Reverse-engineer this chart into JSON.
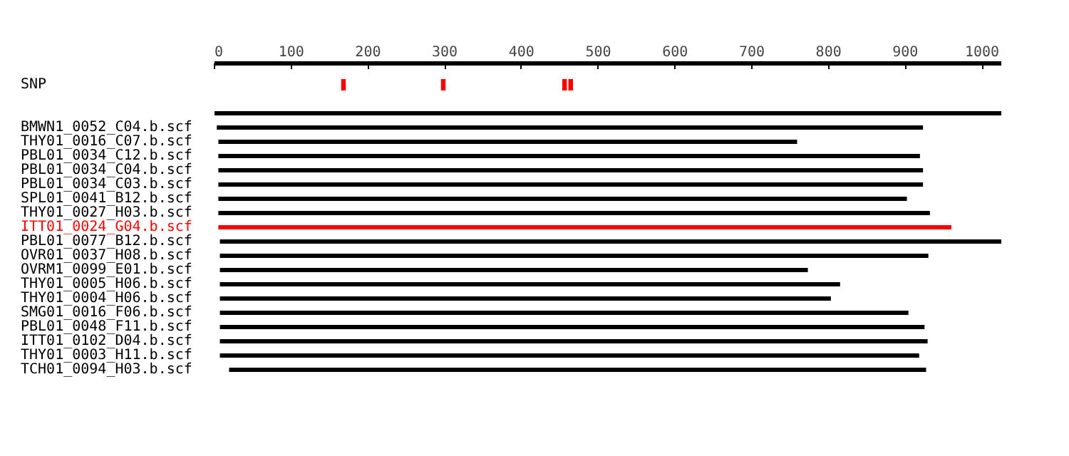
{
  "chart_data": {
    "type": "bar",
    "orientation": "horizontal",
    "grid": false,
    "categories": [
      "SNP",
      null,
      null,
      "BMWN1_0052_C04.b.scf",
      "THY01_0016_C07.b.scf",
      "PBL01_0034_C12.b.scf",
      "PBL01_0034_C04.b.scf",
      "PBL01_0034_C03.b.scf",
      "SPL01_0041_B12.b.scf",
      "THY01_0027_H03.b.scf",
      "ITT01_0024_G04.b.scf",
      "PBL01_0077_B12.b.scf",
      "OVR01_0037_H08.b.scf",
      "OVRM1_0099_E01.b.scf",
      "THY01_0005_H06.b.scf",
      "THY01_0004_H06.b.scf",
      "SMG01_0016_F06.b.scf",
      "PBL01_0048_F11.b.scf",
      "ITT01_0102_D04.b.scf",
      "THY01_0003_H11.b.scf",
      "TCH01_0094_H03.b.scf"
    ],
    "series": [
      {
        "values": [
          null,
          null,
          1025,
          920,
          754,
          914,
          918,
          918,
          897,
          927,
          955,
          1022,
          923,
          766,
          808,
          796,
          897,
          918,
          922,
          911,
          908
        ],
        "base": [
          null,
          null,
          0,
          3,
          5,
          5,
          5,
          5,
          5,
          5,
          5,
          7,
          7,
          7,
          7,
          7,
          7,
          7,
          7,
          7,
          19
        ],
        "colors": [
          "#000000",
          "#000000",
          "#000000",
          "#000000",
          "#000000",
          "#000000",
          "#000000",
          "#000000",
          "#000000",
          "#000000",
          "#ff0000",
          "#000000",
          "#000000",
          "#000000",
          "#000000",
          "#000000",
          "#000000",
          "#000000",
          "#000000",
          "#000000",
          "#000000"
        ]
      },
      {
        "color": "#ff0000",
        "values": [
          6,
          null,
          null,
          null,
          null,
          null,
          null,
          null,
          null,
          null,
          null,
          null,
          null,
          null,
          null,
          null,
          null,
          null,
          null,
          null,
          null
        ],
        "base": [
          165,
          null,
          null,
          null,
          null,
          null,
          null,
          null,
          null,
          null,
          null,
          null,
          null,
          null,
          null,
          null,
          null,
          null,
          null,
          null,
          null
        ]
      },
      {
        "color": "#ff0000",
        "values": [
          6,
          null,
          null,
          null,
          null,
          null,
          null,
          null,
          null,
          null,
          null,
          null,
          null,
          null,
          null,
          null,
          null,
          null,
          null,
          null,
          null
        ],
        "base": [
          295,
          null,
          null,
          null,
          null,
          null,
          null,
          null,
          null,
          null,
          null,
          null,
          null,
          null,
          null,
          null,
          null,
          null,
          null,
          null,
          null
        ]
      },
      {
        "color": "#ff0000",
        "values": [
          6,
          null,
          null,
          null,
          null,
          null,
          null,
          null,
          null,
          null,
          null,
          null,
          null,
          null,
          null,
          null,
          null,
          null,
          null,
          null,
          null
        ],
        "base": [
          453,
          null,
          null,
          null,
          null,
          null,
          null,
          null,
          null,
          null,
          null,
          null,
          null,
          null,
          null,
          null,
          null,
          null,
          null,
          null,
          null
        ]
      },
      {
        "color": "#ff0000",
        "values": [
          6,
          null,
          null,
          null,
          null,
          null,
          null,
          null,
          null,
          null,
          null,
          null,
          null,
          null,
          null,
          null,
          null,
          null,
          null,
          null,
          null
        ],
        "base": [
          461,
          null,
          null,
          null,
          null,
          null,
          null,
          null,
          null,
          null,
          null,
          null,
          null,
          null,
          null,
          null,
          null,
          null,
          null,
          null,
          null
        ]
      }
    ],
    "xlim": [
      0,
      1025
    ],
    "xticks": [
      0,
      100,
      200,
      300,
      400,
      500,
      600,
      700,
      800,
      900,
      1000
    ]
  }
}
